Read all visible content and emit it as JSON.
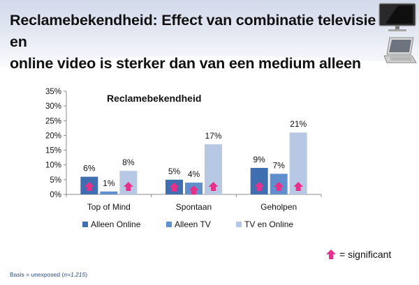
{
  "page": {
    "title_line1": "Reclamebekendheid: Effect van combinatie televisie en",
    "title_line2": "online video is sterker dan van een medium alleen"
  },
  "legend_extra": {
    "significant_label": "= significant",
    "significant_color": "#e5308c"
  },
  "footnote": {
    "prefix": "Basis = unexposed (",
    "n": "n=1.215",
    "suffix": ")"
  },
  "icons": [
    "tv-monitor-icon",
    "laptop-icon",
    "significance-arrow-icon"
  ],
  "chart_data": {
    "type": "bar",
    "title": "Reclamebekendheid",
    "categories": [
      "Top of Mind",
      "Spontaan",
      "Geholpen"
    ],
    "series": [
      {
        "name": "Alleen Online",
        "color": "#3f6fb0",
        "values": [
          6,
          5,
          9
        ],
        "labels": [
          "6%",
          "5%",
          "9%"
        ],
        "significant": [
          true,
          true,
          true
        ]
      },
      {
        "name": "Alleen TV",
        "color": "#5f8fcc",
        "values": [
          1,
          4,
          7
        ],
        "labels": [
          "1%",
          "4%",
          "7%"
        ],
        "significant": [
          false,
          true,
          true
        ]
      },
      {
        "name": "TV en Online",
        "color": "#b7c8e4",
        "values": [
          8,
          17,
          21
        ],
        "labels": [
          "8%",
          "17%",
          "21%"
        ],
        "significant": [
          true,
          true,
          true
        ]
      }
    ],
    "ylim": [
      0,
      35
    ],
    "yticks": [
      0,
      5,
      10,
      15,
      20,
      25,
      30,
      35
    ],
    "ytick_labels": [
      "0%",
      "5%",
      "10%",
      "15%",
      "20%",
      "25%",
      "30%",
      "35%"
    ],
    "grid": false,
    "legend_position": "bottom"
  }
}
